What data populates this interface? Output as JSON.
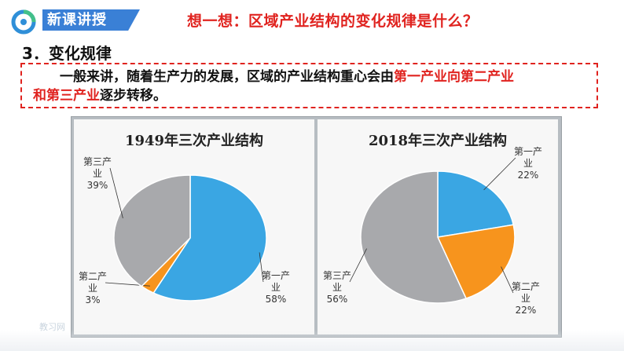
{
  "header": {
    "badge": "新课讲授",
    "thinking": "想一想：区域产业结构的变化规律是什么？"
  },
  "section_title": "3．变化规律",
  "callout": {
    "part1": "一般来讲，随着生产力的发展，区域的产业结构重心会由",
    "highlight1": "第一产业向第二产业",
    "break_highlight": "和第三产业",
    "part2": "逐步转移。"
  },
  "watermark": "教习网",
  "colors": {
    "red": "#e0231f",
    "badge_blue": "#3a80d6",
    "primary": "#3aa6e3",
    "secondary": "#f7941d",
    "tertiary": "#a8a9ac"
  },
  "chart_data": [
    {
      "type": "pie",
      "title": "1949年三次产业结构",
      "slices": [
        {
          "name": "第一产业",
          "value": 58,
          "label": "58%"
        },
        {
          "name": "第二产业",
          "value": 3,
          "label": "3%"
        },
        {
          "name": "第三产业",
          "value": 39,
          "label": "39%"
        }
      ]
    },
    {
      "type": "pie",
      "title": "2018年三次产业结构",
      "slices": [
        {
          "name": "第一产业",
          "value": 22,
          "label": "22%"
        },
        {
          "name": "第二产业",
          "value": 22,
          "label": "22%"
        },
        {
          "name": "第三产业",
          "value": 56,
          "label": "56%"
        }
      ]
    }
  ]
}
